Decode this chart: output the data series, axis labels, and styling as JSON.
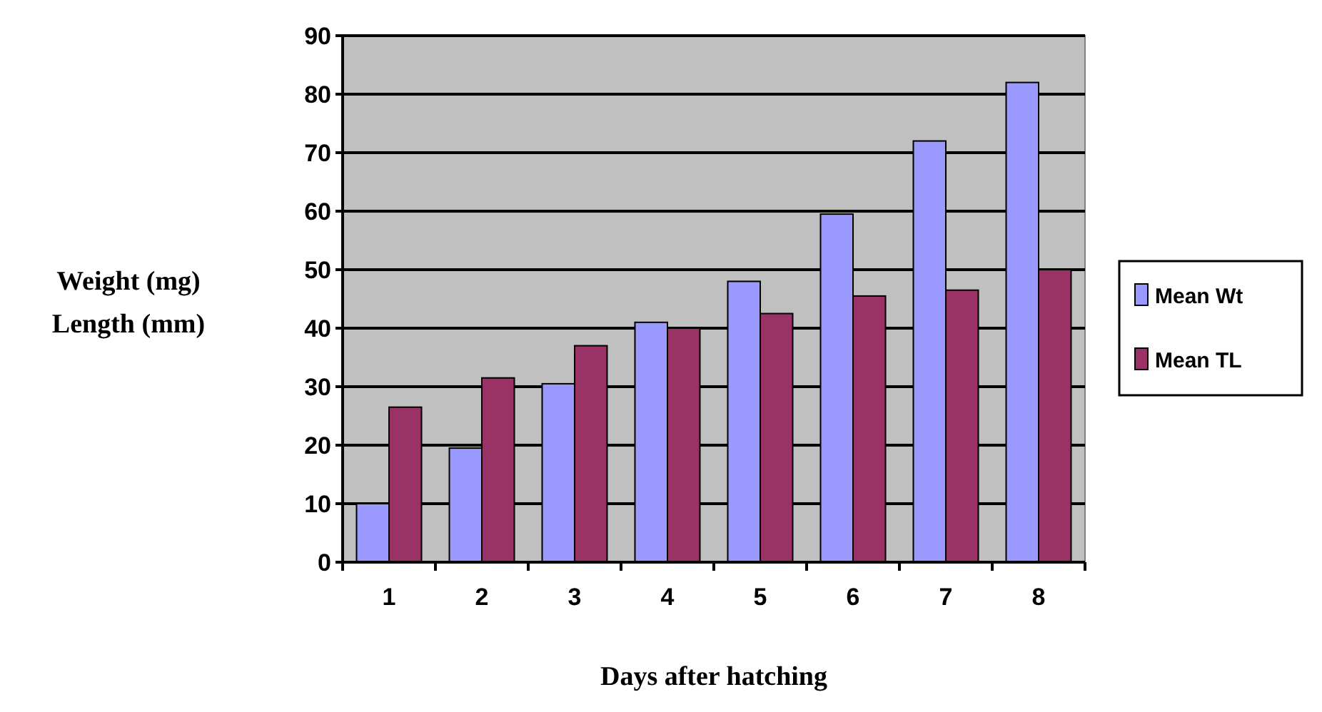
{
  "chart_data": {
    "type": "bar",
    "xlabel": "Days after hatching",
    "ylabel": "Weight (mg)\nLength (mm)",
    "categories": [
      "1",
      "2",
      "3",
      "4",
      "5",
      "6",
      "7",
      "8"
    ],
    "series": [
      {
        "name": "Mean Wt",
        "color": "#9999ff",
        "values": [
          10,
          19.5,
          30.5,
          41,
          48,
          59.5,
          72,
          82
        ]
      },
      {
        "name": "Mean TL",
        "color": "#993366",
        "values": [
          26.5,
          31.5,
          37,
          40,
          42.5,
          45.5,
          46.5,
          50
        ]
      }
    ],
    "ylim": [
      0,
      90
    ],
    "yticks": [
      0,
      10,
      20,
      30,
      40,
      50,
      60,
      70,
      80,
      90
    ],
    "grid": "y",
    "legend": "right"
  }
}
